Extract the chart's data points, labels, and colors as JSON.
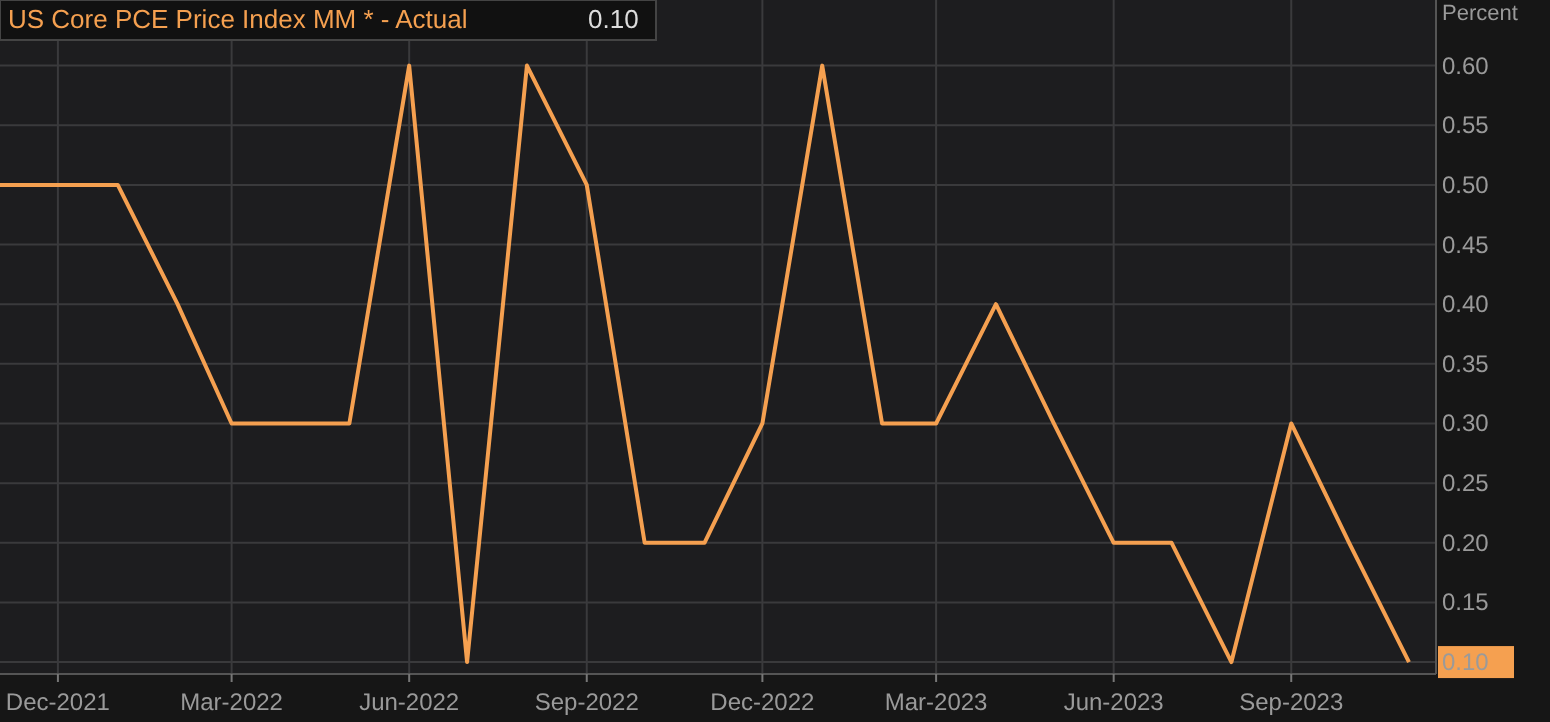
{
  "chart_data": {
    "type": "line",
    "ylabel": "Percent",
    "x": [
      "2021-11",
      "2021-12",
      "2022-01",
      "2022-02",
      "2022-03",
      "2022-04",
      "2022-05",
      "2022-06",
      "2022-07",
      "2022-08",
      "2022-09",
      "2022-10",
      "2022-11",
      "2022-12",
      "2023-01",
      "2023-02",
      "2023-03",
      "2023-04",
      "2023-05",
      "2023-06",
      "2023-07",
      "2023-08",
      "2023-09",
      "2023-10",
      "2023-11"
    ],
    "series": [
      {
        "name": "US Core PCE Price Index MM * - Actual",
        "color": "#f5a050",
        "values": [
          0.5,
          0.5,
          0.5,
          0.4,
          0.3,
          0.3,
          0.3,
          0.6,
          0.1,
          0.6,
          0.5,
          0.2,
          0.2,
          0.3,
          0.6,
          0.3,
          0.3,
          0.4,
          0.3,
          0.2,
          0.2,
          0.1,
          0.3,
          0.2,
          0.1
        ]
      }
    ],
    "xlim": [
      "2021-11",
      "2023-11-15"
    ],
    "xticks": [
      {
        "value": "2021-12",
        "label": "Dec-2021"
      },
      {
        "value": "2022-03",
        "label": "Mar-2022"
      },
      {
        "value": "2022-06",
        "label": "Jun-2022"
      },
      {
        "value": "2022-09",
        "label": "Sep-2022"
      },
      {
        "value": "2022-12",
        "label": "Dec-2022"
      },
      {
        "value": "2023-03",
        "label": "Mar-2023"
      },
      {
        "value": "2023-06",
        "label": "Jun-2023"
      },
      {
        "value": "2023-09",
        "label": "Sep-2023"
      }
    ],
    "ylim": [
      0.09,
      0.655
    ],
    "yticks": [
      {
        "value": 0.1,
        "label": "0.10"
      },
      {
        "value": 0.15,
        "label": "0.15"
      },
      {
        "value": 0.2,
        "label": "0.20"
      },
      {
        "value": 0.25,
        "label": "0.25"
      },
      {
        "value": 0.3,
        "label": "0.30"
      },
      {
        "value": 0.35,
        "label": "0.35"
      },
      {
        "value": 0.4,
        "label": "0.40"
      },
      {
        "value": 0.45,
        "label": "0.45"
      },
      {
        "value": 0.5,
        "label": "0.50"
      },
      {
        "value": 0.55,
        "label": "0.55"
      },
      {
        "value": 0.6,
        "label": "0.60"
      }
    ],
    "grid": true,
    "line_style": "solid",
    "marker": "none",
    "legend": "top left",
    "annotations": [
      "0.10"
    ]
  }
}
